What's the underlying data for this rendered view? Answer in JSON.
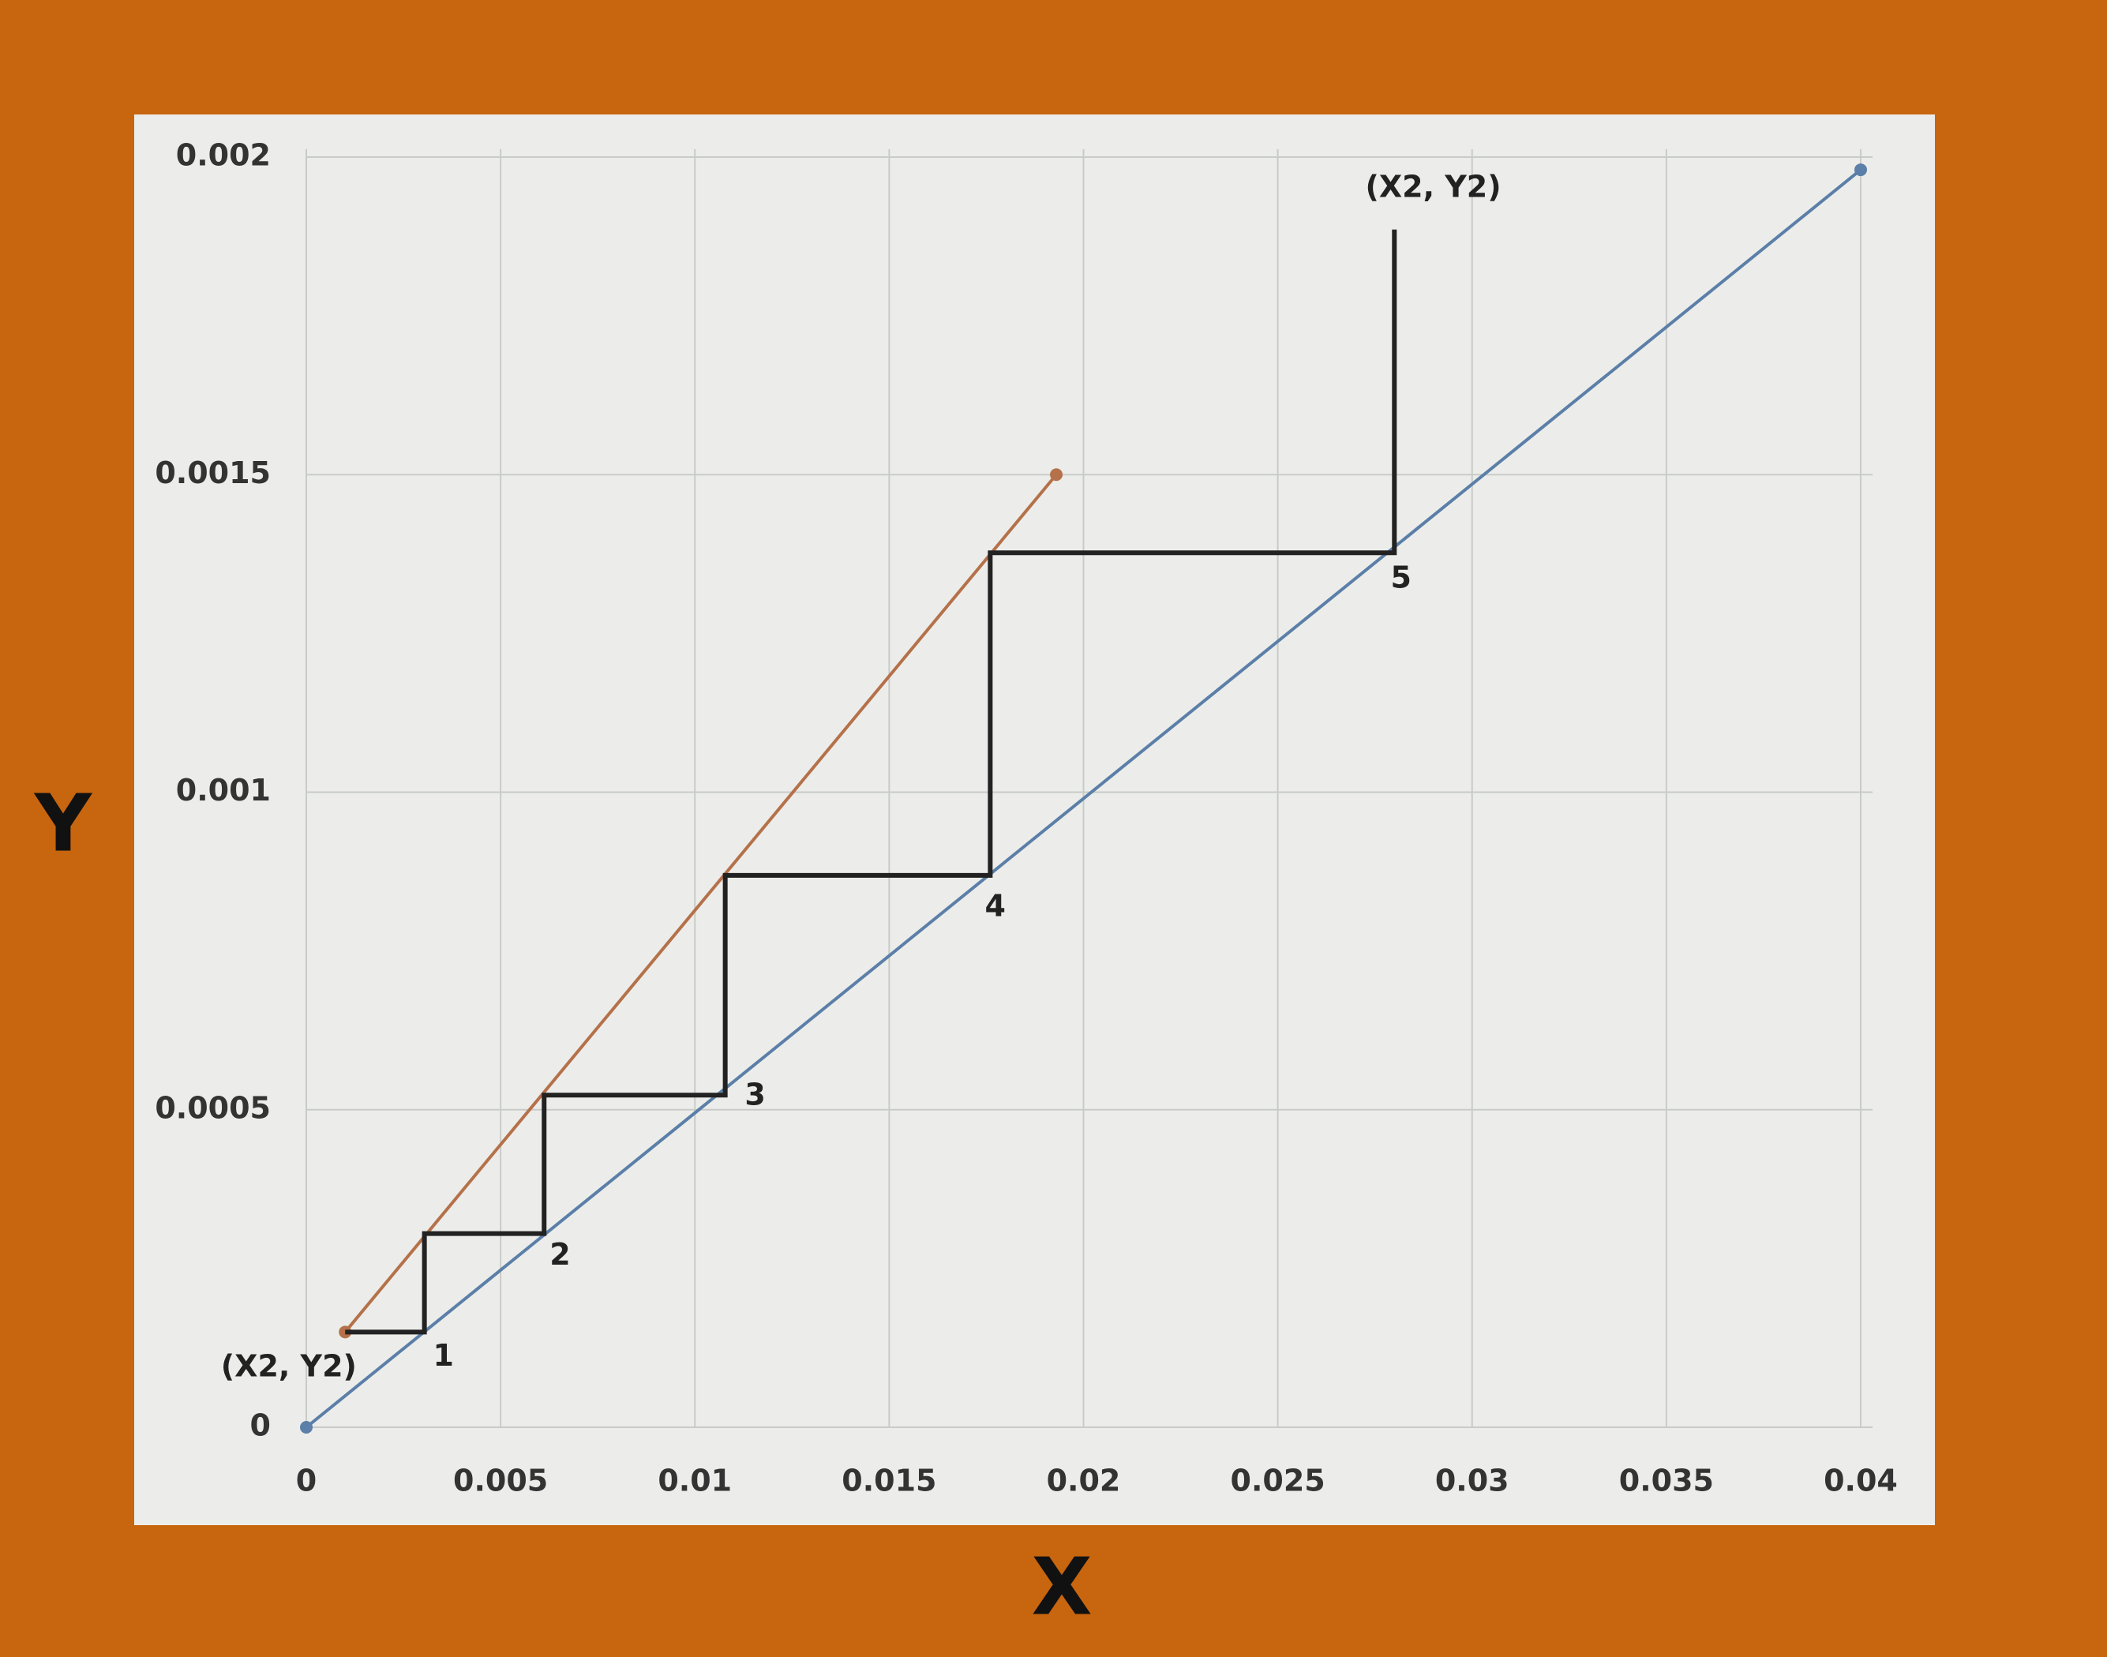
{
  "chart_data": {
    "type": "line",
    "x_label": "X",
    "y_label": "Y",
    "xlim": [
      0,
      0.04
    ],
    "ylim": [
      0,
      0.002
    ],
    "xticks": [
      0,
      0.005,
      0.01,
      0.015,
      0.02,
      0.025,
      0.03,
      0.035,
      0.04
    ],
    "yticks": [
      0,
      0.0005,
      0.001,
      0.0015,
      0.002
    ],
    "grid": true,
    "series": [
      {
        "color": "#5b7fa8",
        "markers": true,
        "x": [
          0,
          0.04
        ],
        "values": [
          0,
          0.00198
        ]
      },
      {
        "color": "#b5714a",
        "markers": true,
        "x": [
          0.001,
          0.0193
        ],
        "values": [
          0.00015,
          0.0015
        ]
      },
      {
        "color": "#222222",
        "markers": false,
        "x": [
          0.001,
          0.00304,
          0.00304,
          0.00612,
          0.00612,
          0.01078,
          0.01078,
          0.0176,
          0.0176,
          0.028,
          0.028
        ],
        "values": [
          0.00015,
          0.00015,
          0.000305,
          0.000305,
          0.000523,
          0.000523,
          0.000869,
          0.000869,
          0.001377,
          0.001377,
          0.001886
        ]
      }
    ],
    "annotations": [
      {
        "text": "(X2, Y2)",
        "x": 0.029,
        "y": 0.00195
      },
      {
        "text": "(X2, Y2)",
        "x": -0.00045,
        "y": 9.3e-05
      },
      {
        "text": "1",
        "x": 0.00353,
        "y": 0.00011
      },
      {
        "text": "2",
        "x": 0.00653,
        "y": 0.000269
      },
      {
        "text": "3",
        "x": 0.01155,
        "y": 0.000521
      },
      {
        "text": "4",
        "x": 0.01773,
        "y": 0.000818
      },
      {
        "text": "5",
        "x": 0.02817,
        "y": 0.001335
      }
    ]
  }
}
